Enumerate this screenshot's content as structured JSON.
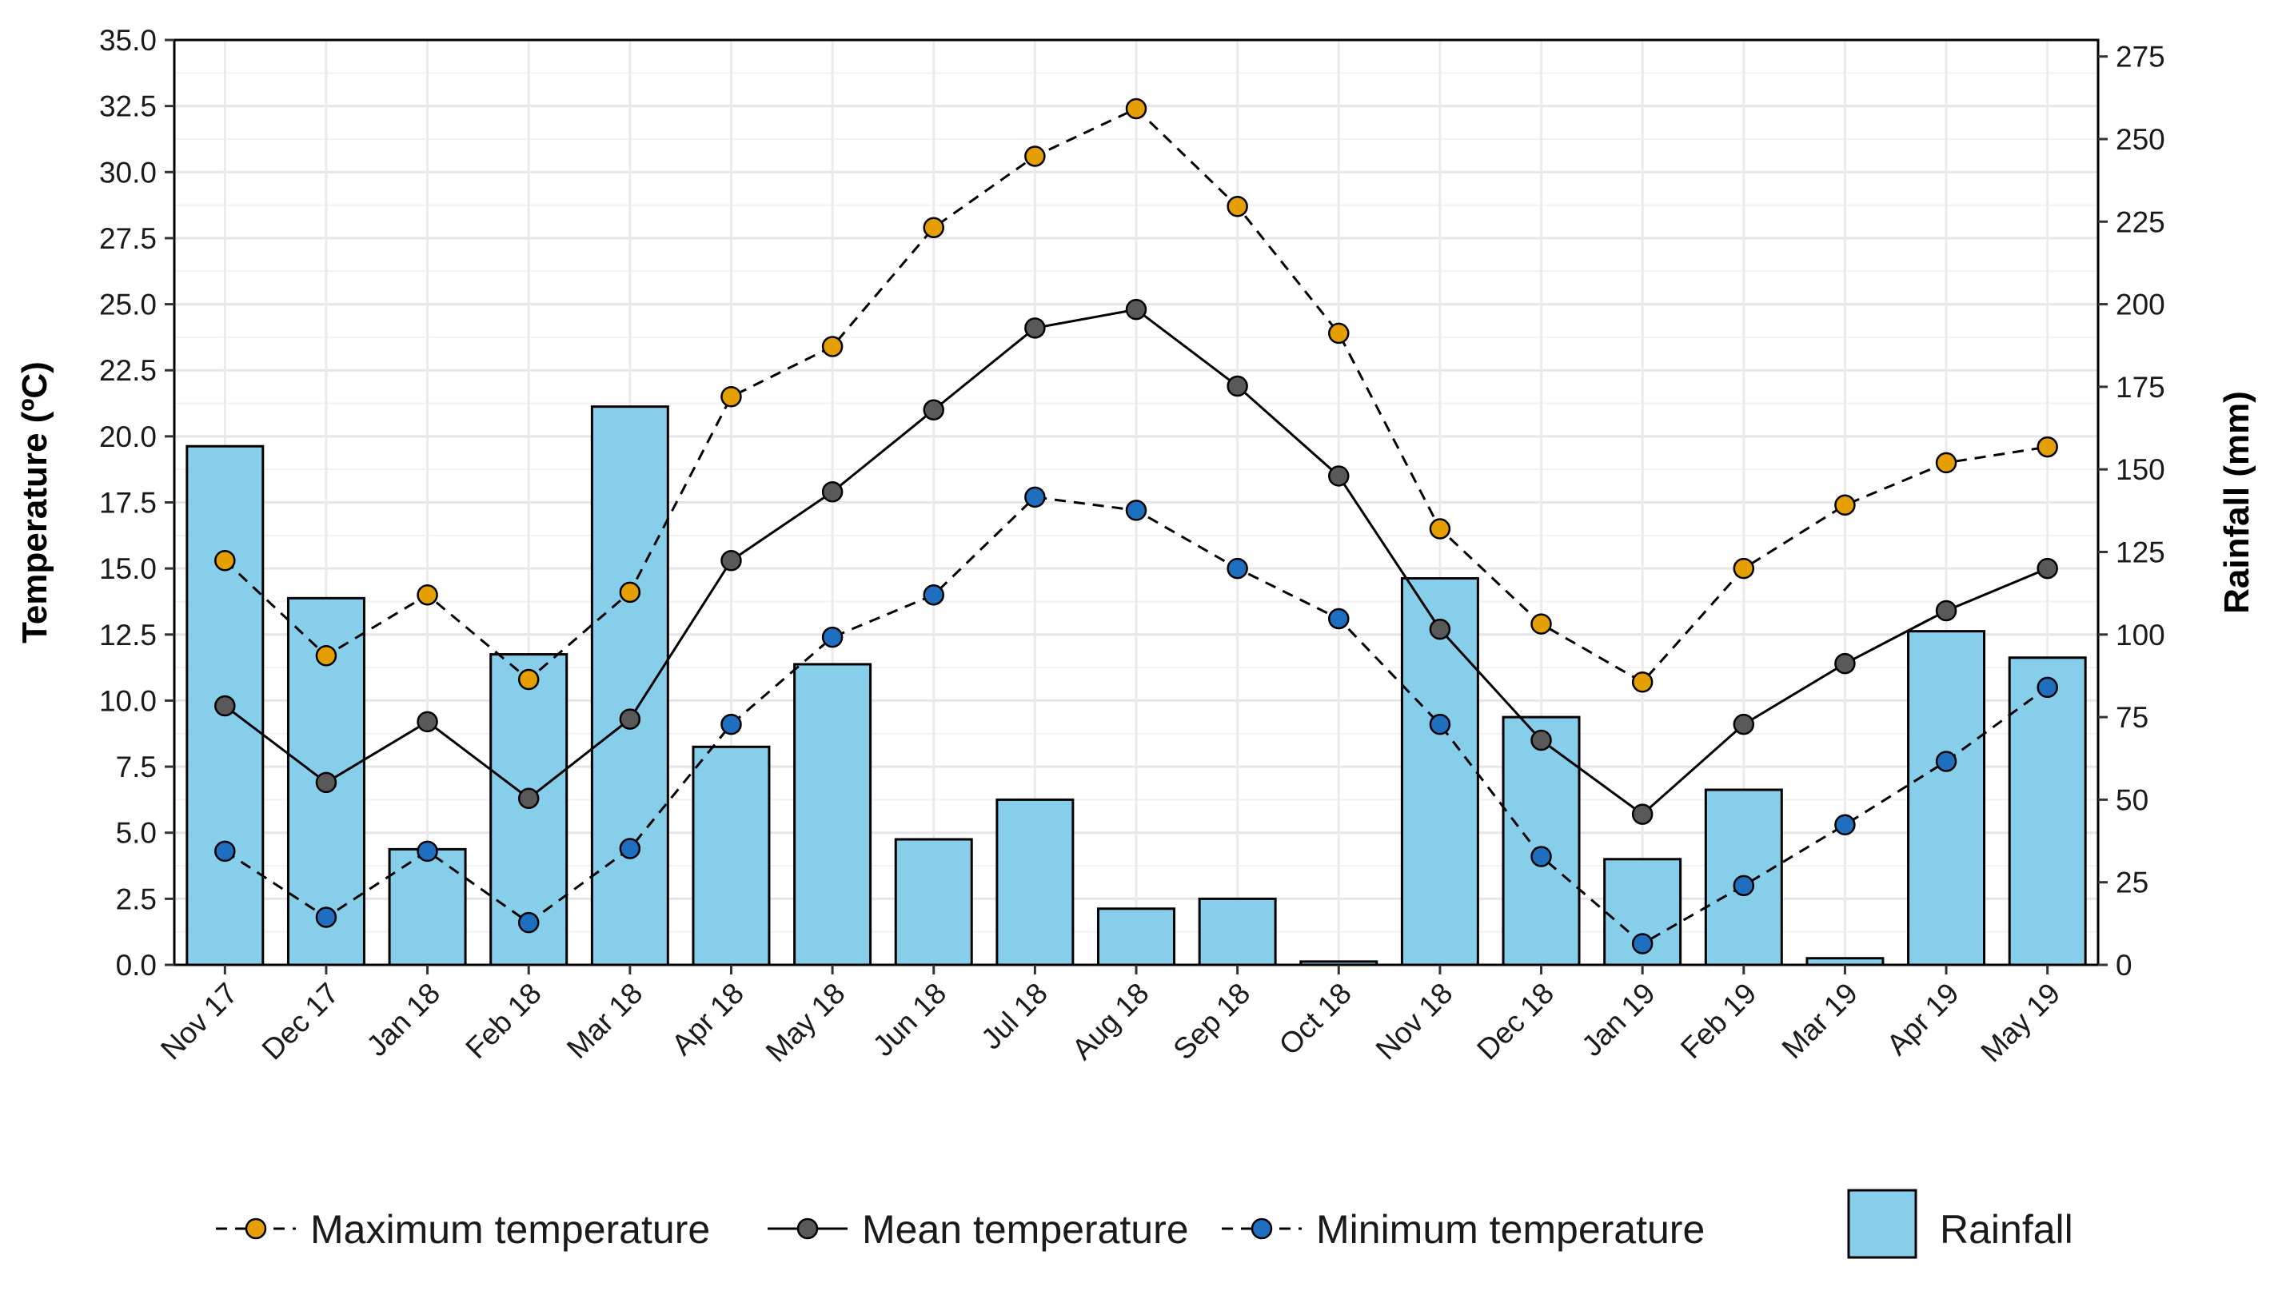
{
  "chart_data": {
    "type": "bar+line",
    "categories": [
      "Nov 17",
      "Dec 17",
      "Jan 18",
      "Feb 18",
      "Mar 18",
      "Apr 18",
      "May 18",
      "Jun 18",
      "Jul 18",
      "Aug 18",
      "Sep 18",
      "Oct 18",
      "Nov 18",
      "Dec 18",
      "Jan 19",
      "Feb 19",
      "Mar 19",
      "Apr 19",
      "May 19"
    ],
    "left_axis": {
      "label": "Temperature (ºC)",
      "ylim": [
        0,
        35
      ],
      "ticks": [
        "0.0",
        "2.5",
        "5.0",
        "7.5",
        "10.0",
        "12.5",
        "15.0",
        "17.5",
        "20.0",
        "22.5",
        "25.0",
        "27.5",
        "30.0",
        "32.5",
        "35.0"
      ]
    },
    "right_axis": {
      "label": "Rainfall (mm)",
      "ylim": [
        0,
        275
      ],
      "ticks": [
        "0",
        "25",
        "50",
        "75",
        "100",
        "125",
        "150",
        "175",
        "200",
        "225",
        "250",
        "275"
      ]
    },
    "bars": {
      "name": "Rainfall",
      "axis": "right",
      "color": "#87CEEB",
      "values": [
        157,
        111,
        35,
        94,
        169,
        66,
        91,
        38,
        50,
        17,
        20,
        1,
        117,
        75,
        32,
        53,
        2,
        101,
        93
      ]
    },
    "series": [
      {
        "name": "Maximum temperature",
        "axis": "left",
        "color": "#E69F00",
        "line": "dashed",
        "values": [
          15.3,
          11.7,
          14.0,
          10.8,
          14.1,
          21.5,
          23.4,
          27.9,
          30.6,
          32.4,
          28.7,
          23.9,
          16.5,
          12.9,
          10.7,
          15.0,
          17.4,
          19.0,
          19.6
        ]
      },
      {
        "name": "Mean temperature",
        "axis": "left",
        "color": "#595959",
        "line": "solid",
        "values": [
          9.8,
          6.9,
          9.2,
          6.3,
          9.3,
          15.3,
          17.9,
          21.0,
          24.1,
          24.8,
          21.9,
          18.5,
          12.7,
          8.5,
          5.7,
          9.1,
          11.4,
          13.4,
          15.0
        ]
      },
      {
        "name": "Minimum temperature",
        "axis": "left",
        "color": "#1F6FC0",
        "line": "dashed",
        "values": [
          4.3,
          1.8,
          4.3,
          1.6,
          4.4,
          9.1,
          12.4,
          14.0,
          17.7,
          17.2,
          15.0,
          13.1,
          9.1,
          4.1,
          0.8,
          3.0,
          5.3,
          7.7,
          10.5
        ]
      }
    ],
    "legend": [
      "Maximum temperature",
      "Mean temperature",
      "Minimum temperature",
      "Rainfall"
    ],
    "legend_position": "bottom",
    "grid": true
  }
}
